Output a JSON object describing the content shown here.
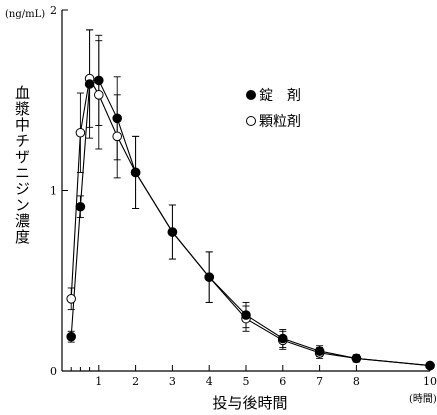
{
  "chart_data": {
    "type": "line",
    "xlabel": "投与後時間",
    "x_unit": "(時間)",
    "ylabel": "血漿中チザニジン濃度",
    "y_unit": "(ng/mL)",
    "xlim": [
      0,
      10
    ],
    "ylim": [
      0,
      2
    ],
    "x_ticks": [
      1,
      2,
      3,
      4,
      5,
      6,
      7,
      8,
      10
    ],
    "x_minor_ticks": [
      0.25,
      0.5,
      0.75
    ],
    "y_ticks": [
      0,
      1,
      2
    ],
    "grid": false,
    "legend_position": "top-right",
    "series": [
      {
        "name": "錠　剤",
        "marker": "filled-circle",
        "x": [
          0.25,
          0.5,
          0.75,
          1,
          1.5,
          2,
          3,
          4,
          5,
          6,
          7,
          8,
          10
        ],
        "y": [
          0.19,
          0.91,
          1.59,
          1.61,
          1.4,
          1.1,
          0.77,
          0.52,
          0.31,
          0.18,
          0.11,
          0.07,
          0.03
        ],
        "error": [
          0.03,
          0.06,
          0.3,
          0.25,
          0.23,
          0.2,
          0.15,
          0.14,
          0.07,
          0.05,
          0.03,
          0.02,
          0.01
        ]
      },
      {
        "name": "顆粒剤",
        "marker": "open-circle",
        "x": [
          0.25,
          0.5,
          0.75,
          1,
          1.5,
          2,
          3,
          4,
          5,
          6,
          7,
          8,
          10
        ],
        "y": [
          0.4,
          1.32,
          1.62,
          1.53,
          1.3,
          1.1,
          0.77,
          0.52,
          0.29,
          0.17,
          0.1,
          0.07,
          0.03
        ],
        "error": [
          0.06,
          0.22,
          0.27,
          0.3,
          0.23,
          0.2,
          0.15,
          0.14,
          0.07,
          0.05,
          0.03,
          0.02,
          0.01
        ]
      }
    ]
  }
}
